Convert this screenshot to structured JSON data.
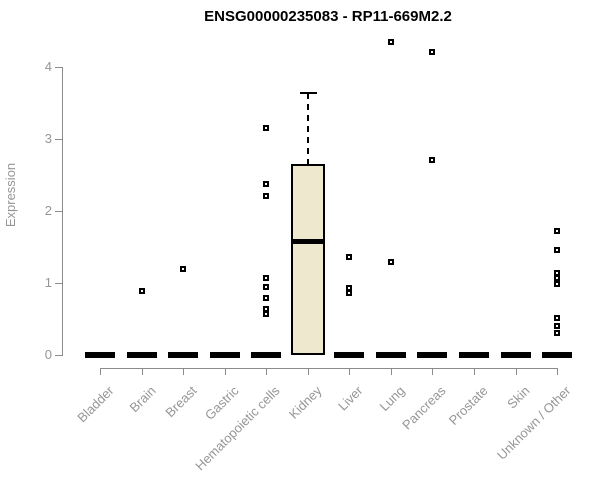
{
  "chart_data": {
    "type": "boxplot",
    "title": "ENSG00000235083 - RP11-669M2.2",
    "xlabel": "",
    "ylabel": "Expression",
    "ylim": [
      0,
      4.4
    ],
    "yticks": [
      0,
      1,
      2,
      3,
      4
    ],
    "grid": false,
    "legend": "none",
    "categories": [
      "Bladder",
      "Brain",
      "Breast",
      "Gastric",
      "Hematopoietic cells",
      "Kidney",
      "Liver",
      "Lung",
      "Pancreas",
      "Prostate",
      "Skin",
      "Unknown / Other"
    ],
    "boxes": [
      {
        "category": "Bladder",
        "q1": 0,
        "median": 0,
        "q3": 0,
        "whisker_low": 0,
        "whisker_high": 0,
        "outliers": []
      },
      {
        "category": "Brain",
        "q1": 0,
        "median": 0,
        "q3": 0,
        "whisker_low": 0,
        "whisker_high": 0,
        "outliers": [
          0.89
        ]
      },
      {
        "category": "Breast",
        "q1": 0,
        "median": 0,
        "q3": 0,
        "whisker_low": 0,
        "whisker_high": 0,
        "outliers": [
          1.19
        ]
      },
      {
        "category": "Gastric",
        "q1": 0,
        "median": 0,
        "q3": 0,
        "whisker_low": 0,
        "whisker_high": 0,
        "outliers": []
      },
      {
        "category": "Hematopoietic cells",
        "q1": 0,
        "median": 0,
        "q3": 0,
        "whisker_low": 0,
        "whisker_high": 0,
        "outliers": [
          3.15,
          2.37,
          2.21,
          1.07,
          0.94,
          0.79,
          0.64,
          0.57
        ]
      },
      {
        "category": "Kidney",
        "q1": 0,
        "median": 1.59,
        "q3": 2.65,
        "whisker_low": 0,
        "whisker_high": 3.64,
        "outliers": []
      },
      {
        "category": "Liver",
        "q1": 0,
        "median": 0,
        "q3": 0,
        "whisker_low": 0,
        "whisker_high": 0,
        "outliers": [
          1.36,
          0.93,
          0.86
        ]
      },
      {
        "category": "Lung",
        "q1": 0,
        "median": 0,
        "q3": 0,
        "whisker_low": 0,
        "whisker_high": 0,
        "outliers": [
          4.35,
          1.29
        ]
      },
      {
        "category": "Pancreas",
        "q1": 0,
        "median": 0,
        "q3": 0,
        "whisker_low": 0,
        "whisker_high": 0,
        "outliers": [
          4.21,
          2.71
        ]
      },
      {
        "category": "Prostate",
        "q1": 0,
        "median": 0,
        "q3": 0,
        "whisker_low": 0,
        "whisker_high": 0,
        "outliers": []
      },
      {
        "category": "Skin",
        "q1": 0,
        "median": 0,
        "q3": 0,
        "whisker_low": 0,
        "whisker_high": 0,
        "outliers": []
      },
      {
        "category": "Unknown / Other",
        "q1": 0,
        "median": 0,
        "q3": 0,
        "whisker_low": 0,
        "whisker_high": 0,
        "outliers": [
          1.72,
          1.46,
          1.14,
          1.07,
          0.98,
          0.51,
          0.4,
          0.31
        ]
      }
    ],
    "colors": {
      "background": "#ffffff",
      "title": "#000000",
      "axis": "#8c8c8c",
      "axis_text": "#969696",
      "box_fill": "#EDE8CE",
      "box_border": "#000000",
      "outlier": "#000000"
    }
  }
}
